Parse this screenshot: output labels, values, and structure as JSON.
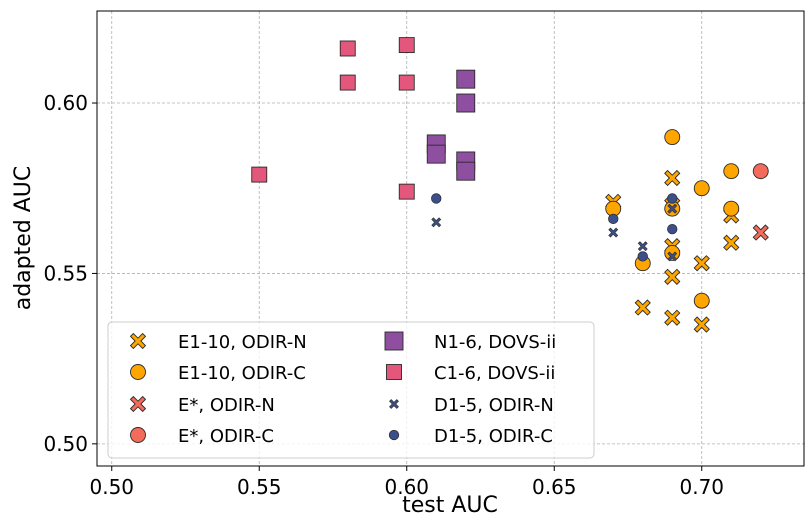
{
  "chart_data": {
    "type": "scatter",
    "title": "",
    "xlabel": "test AUC",
    "ylabel": "adapted AUC",
    "xlim": [
      0.495,
      0.735
    ],
    "ylim": [
      0.4935,
      0.627
    ],
    "xticks": [
      "0.50",
      "0.55",
      "0.60",
      "0.65",
      "0.70"
    ],
    "xtick_values": [
      0.5,
      0.55,
      0.6,
      0.65,
      0.7
    ],
    "yticks": [
      "0.50",
      "0.55",
      "0.60"
    ],
    "ytick_values": [
      0.5,
      0.55,
      0.6
    ],
    "grid": true,
    "legend_position": "bottom-left",
    "legend_columns": 2,
    "series": [
      {
        "name": "E1-10, ODIR-N",
        "marker": "x-filled",
        "color": "#FFA500",
        "points": [
          [
            0.67,
            0.571
          ],
          [
            0.69,
            0.578
          ],
          [
            0.69,
            0.558
          ],
          [
            0.69,
            0.549
          ],
          [
            0.68,
            0.54
          ],
          [
            0.69,
            0.537
          ],
          [
            0.7,
            0.535
          ],
          [
            0.7,
            0.553
          ],
          [
            0.71,
            0.567
          ],
          [
            0.71,
            0.559
          ],
          [
            0.69,
            0.57
          ]
        ]
      },
      {
        "name": "E1-10, ODIR-C",
        "marker": "circle",
        "color": "#FFA500",
        "points": [
          [
            0.67,
            0.569
          ],
          [
            0.69,
            0.59
          ],
          [
            0.69,
            0.569
          ],
          [
            0.69,
            0.556
          ],
          [
            0.68,
            0.553
          ],
          [
            0.7,
            0.575
          ],
          [
            0.7,
            0.542
          ],
          [
            0.71,
            0.58
          ],
          [
            0.71,
            0.569
          ]
        ]
      },
      {
        "name": "E*, ODIR-N",
        "marker": "x-filled",
        "color": "#F26B5B",
        "points": [
          [
            0.72,
            0.562
          ]
        ]
      },
      {
        "name": "E*, ODIR-C",
        "marker": "circle",
        "color": "#F26B5B",
        "points": [
          [
            0.72,
            0.58
          ]
        ]
      },
      {
        "name": "N1-6, DOVS-ii",
        "marker": "square-large",
        "color": "#8E4FA0",
        "points": [
          [
            0.61,
            0.588
          ],
          [
            0.61,
            0.585
          ],
          [
            0.62,
            0.607
          ],
          [
            0.62,
            0.6
          ],
          [
            0.62,
            0.583
          ],
          [
            0.62,
            0.58
          ]
        ]
      },
      {
        "name": "C1-6, DOVS-ii",
        "marker": "square",
        "color": "#E4577D",
        "points": [
          [
            0.55,
            0.579
          ],
          [
            0.58,
            0.616
          ],
          [
            0.58,
            0.606
          ],
          [
            0.6,
            0.617
          ],
          [
            0.6,
            0.606
          ],
          [
            0.6,
            0.574
          ]
        ]
      },
      {
        "name": "D1-5, ODIR-N",
        "marker": "x-small",
        "color": "#3C4F8A",
        "points": [
          [
            0.61,
            0.565
          ],
          [
            0.67,
            0.562
          ],
          [
            0.68,
            0.558
          ],
          [
            0.69,
            0.569
          ],
          [
            0.69,
            0.555
          ]
        ]
      },
      {
        "name": "D1-5, ODIR-C",
        "marker": "circle-small",
        "color": "#3C4F8A",
        "points": [
          [
            0.61,
            0.572
          ],
          [
            0.67,
            0.566
          ],
          [
            0.68,
            0.555
          ],
          [
            0.69,
            0.572
          ],
          [
            0.69,
            0.563
          ]
        ]
      }
    ]
  }
}
